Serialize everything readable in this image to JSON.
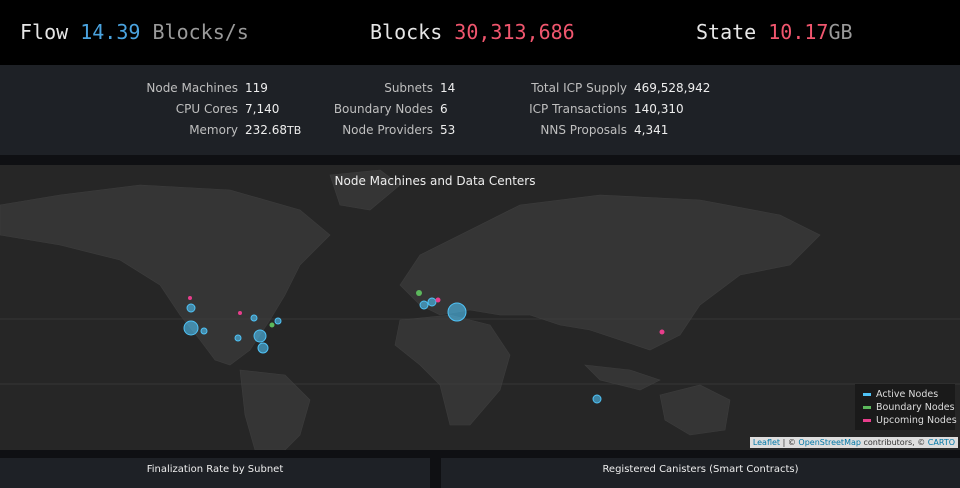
{
  "header": {
    "flow": {
      "label": "Flow",
      "value": "14.39",
      "unit": "Blocks/s"
    },
    "blocks": {
      "label": "Blocks",
      "value": "30,313,686"
    },
    "state": {
      "label": "State",
      "value": "10.17",
      "unit": "GB"
    }
  },
  "stats": {
    "columns": [
      [
        {
          "label": "Node Machines",
          "value": "119"
        },
        {
          "label": "CPU Cores",
          "value": "7,140"
        },
        {
          "label": "Memory",
          "value": "232.68",
          "unit": "TB"
        }
      ],
      [
        {
          "label": "Subnets",
          "value": "14"
        },
        {
          "label": "Boundary Nodes",
          "value": "6"
        },
        {
          "label": "Node Providers",
          "value": "53"
        }
      ],
      [
        {
          "label": "Total ICP Supply",
          "value": "469,528,942"
        },
        {
          "label": "ICP Transactions",
          "value": "140,310"
        },
        {
          "label": "NNS Proposals",
          "value": "4,341"
        }
      ]
    ]
  },
  "map": {
    "title": "Node Machines and Data Centers",
    "legend": [
      "Active Nodes",
      "Boundary Nodes",
      "Upcoming Nodes"
    ],
    "attribution": [
      "Leaflet",
      " | © ",
      "OpenStreetMap",
      " contributors, © ",
      "CARTO"
    ]
  },
  "panels": [
    "Finalization Rate by Subnet",
    "Registered Canisters (Smart Contracts)"
  ]
}
